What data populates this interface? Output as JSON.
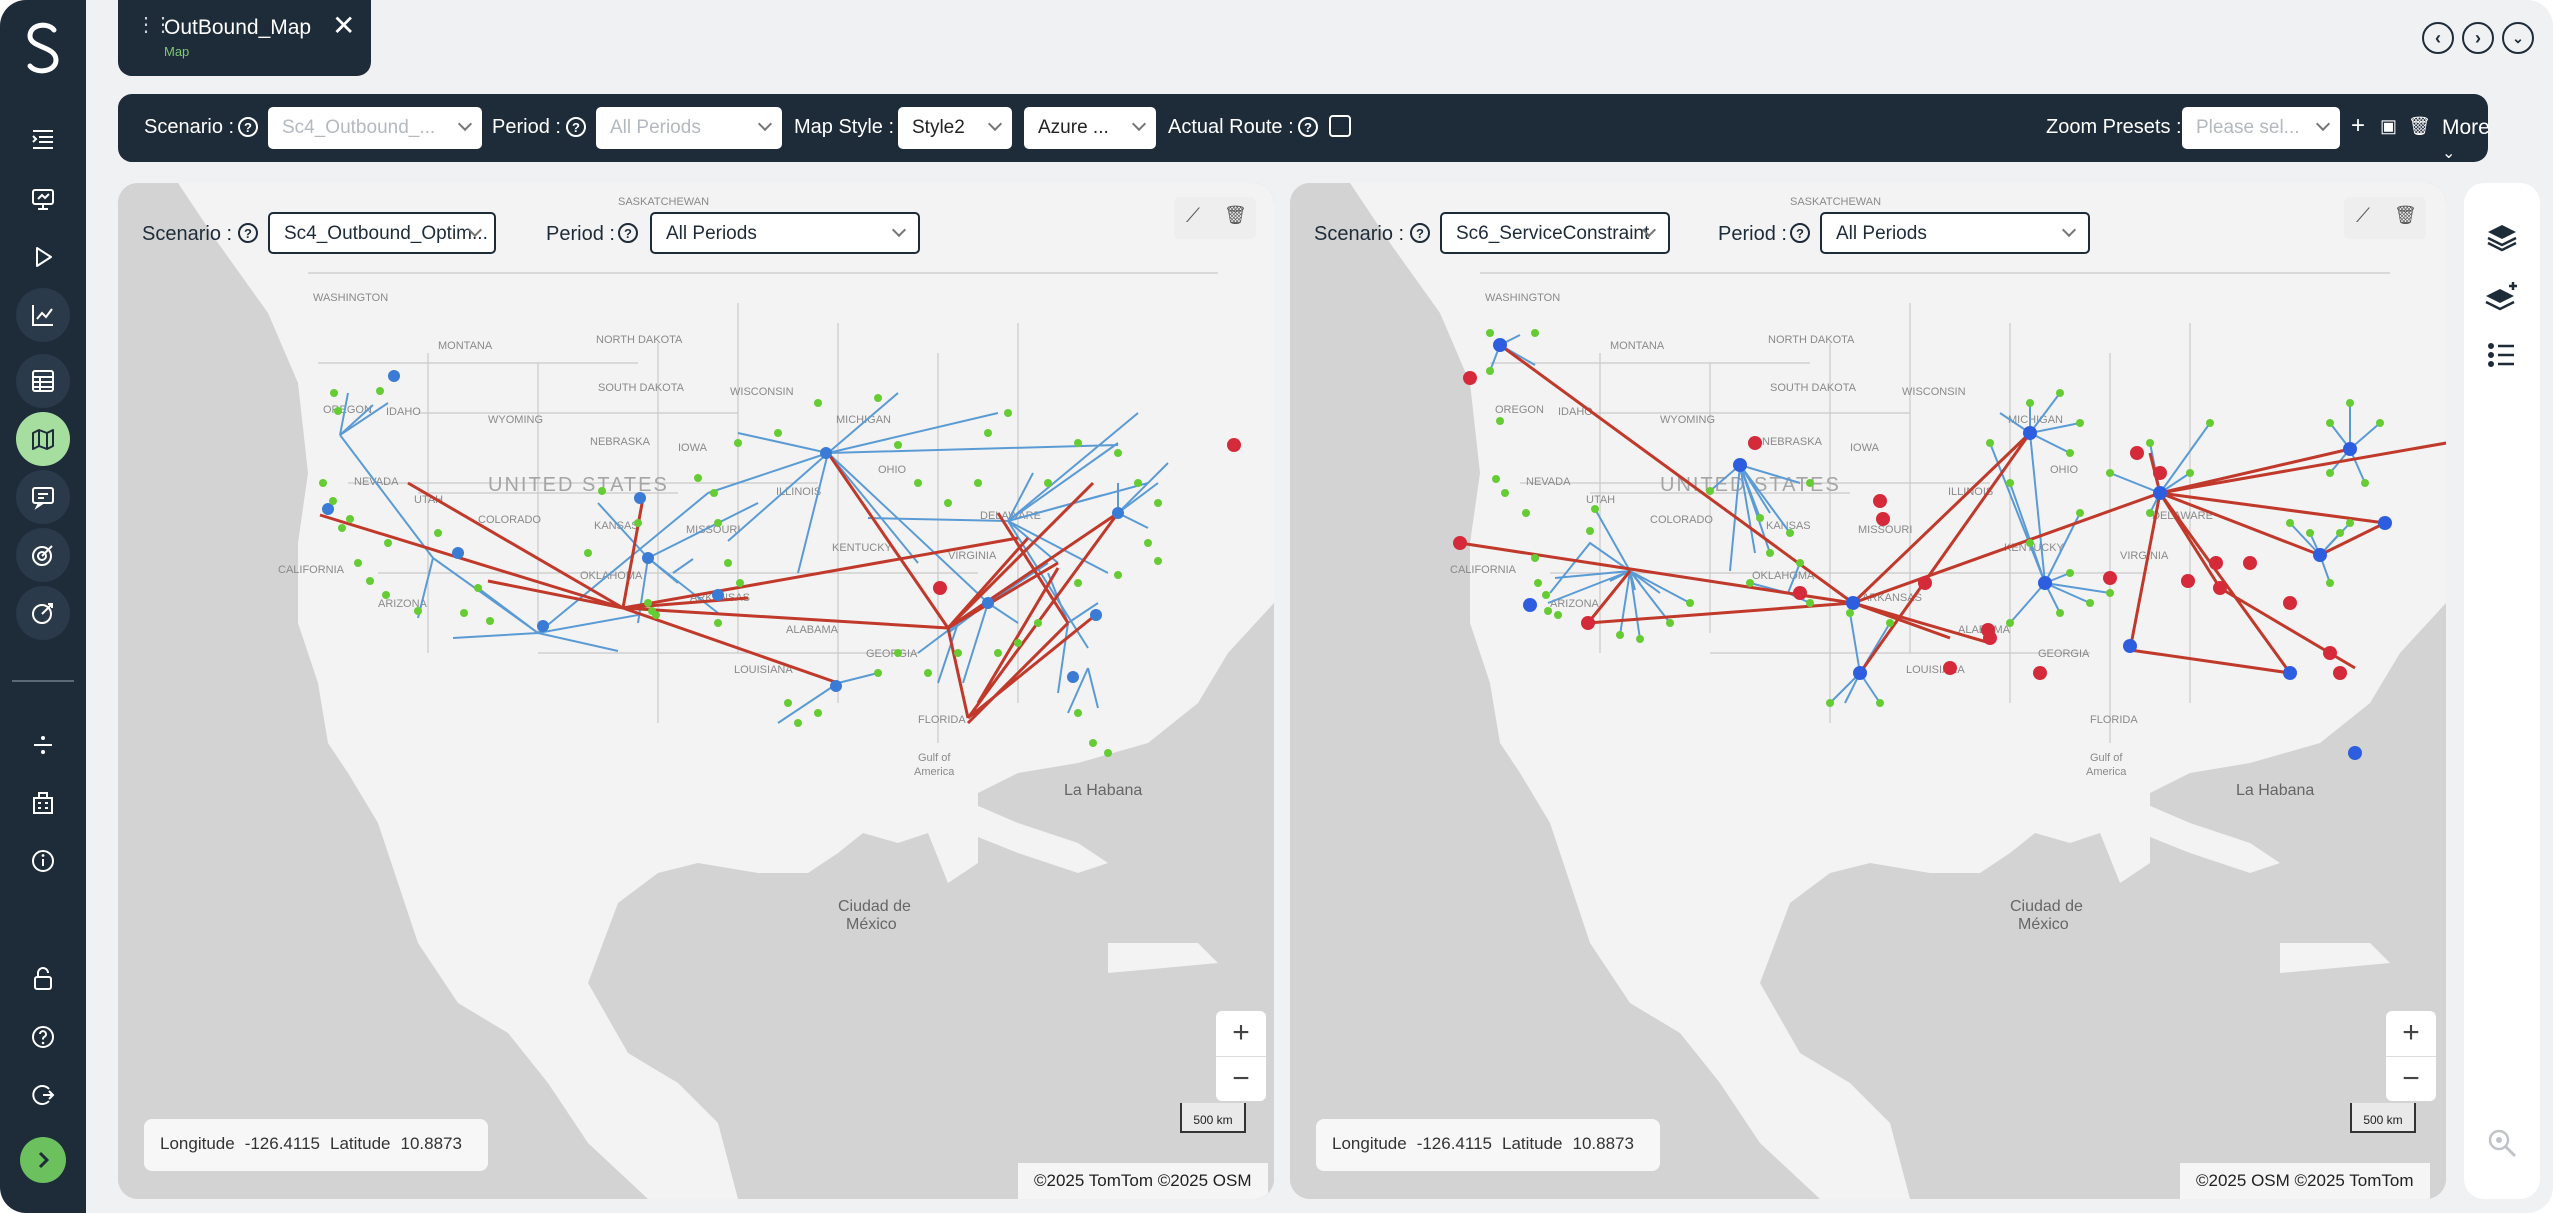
{
  "tab": {
    "title": "OutBound_Map",
    "subtitle": "Map"
  },
  "sidebar": {
    "items": [
      {
        "icon": "list-indent-icon"
      },
      {
        "icon": "presentation-icon"
      },
      {
        "icon": "play-icon"
      },
      {
        "icon": "chart-line-icon"
      },
      {
        "icon": "table-icon"
      },
      {
        "icon": "map-icon"
      },
      {
        "icon": "chat-icon"
      },
      {
        "icon": "target-check-icon"
      },
      {
        "icon": "target-cross-icon"
      },
      {
        "icon": "divide-icon"
      },
      {
        "icon": "building-icon"
      },
      {
        "icon": "info-icon"
      },
      {
        "icon": "lock-icon"
      },
      {
        "icon": "help-icon"
      },
      {
        "icon": "logout-icon"
      },
      {
        "icon": "chevron-right-icon"
      }
    ],
    "active_item": "map-icon"
  },
  "toolbar": {
    "scenario_label": "Scenario :",
    "scenario_value": "Sc4_Outbound_...",
    "period_label": "Period :",
    "period_placeholder": "All Periods",
    "map_style_label": "Map Style :",
    "map_style_value": "Style2",
    "tile_value": "Azure ...",
    "actual_route_label": "Actual Route :",
    "zoom_presets_label": "Zoom Presets :",
    "zoom_presets_placeholder": "Please sel...",
    "more_label": "More"
  },
  "maps": [
    {
      "scenario_label": "Scenario :",
      "scenario_value": "Sc4_Outbound_Optim...",
      "period_label": "Period :",
      "period_value": "All Periods",
      "longitude_label": "Longitude",
      "longitude_value": "-126.4115",
      "latitude_label": "Latitude",
      "latitude_value": "10.8873",
      "scale_label": "500 km",
      "attribution": "©2025 TomTom ©2025 OSM"
    },
    {
      "scenario_label": "Scenario :",
      "scenario_value": "Sc6_ServiceConstraint",
      "period_label": "Period :",
      "period_value": "All Periods",
      "longitude_label": "Longitude",
      "longitude_value": "-126.4115",
      "latitude_label": "Latitude",
      "latitude_value": "10.8873",
      "scale_label": "500 km",
      "attribution": "©2025 OSM ©2025 TomTom"
    }
  ],
  "map_labels": {
    "country": "UNITED STATES",
    "states": [
      "WASHINGTON",
      "MONTANA",
      "NORTH DAKOTA",
      "SOUTH DAKOTA",
      "OREGON",
      "IDAHO",
      "WYOMING",
      "NEBRASKA",
      "IOWA",
      "WISCONSIN",
      "MICHIGAN",
      "ILLINOIS",
      "NEVADA",
      "UTAH",
      "COLORADO",
      "KANSAS",
      "MISSOURI",
      "KENTUCKY",
      "OHIO",
      "CALIFORNIA",
      "ARIZONA",
      "OKLAHOMA",
      "ARKANSAS",
      "ALABAMA",
      "GEORGIA",
      "LOUISIANA",
      "FLORIDA",
      "VIRGINIA",
      "DELAWARE",
      "SASKATCHEWAN"
    ],
    "places": [
      "Gulf of America",
      "La Habana",
      "Ciudad de México"
    ]
  },
  "colors": {
    "sidebar": "#1e2b38",
    "active_nav": "#a6dea0",
    "dc_node": "#3a7bd5",
    "customer_node": "#66cc33",
    "plant_node": "#d42a3a",
    "inbound_line": "#c0392b",
    "outbound_line": "#5b9bd5"
  }
}
